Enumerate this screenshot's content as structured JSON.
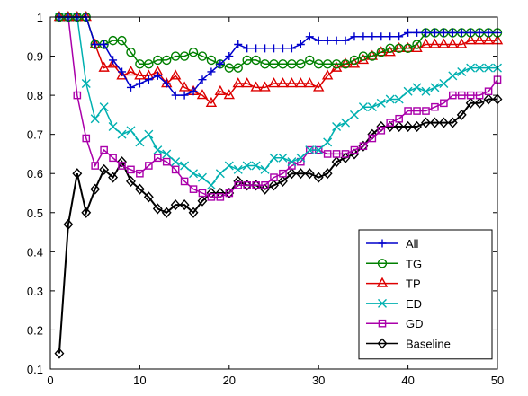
{
  "chart_data": {
    "type": "line",
    "title": "",
    "xlabel": "",
    "ylabel": "",
    "xlim": [
      0,
      50
    ],
    "ylim": [
      0.1,
      1
    ],
    "xticks": [
      0,
      10,
      20,
      30,
      40,
      50
    ],
    "yticks": [
      0.1,
      0.2,
      0.3,
      0.4,
      0.5,
      0.6,
      0.7,
      0.8,
      0.9,
      1
    ],
    "ytick_labels": [
      "0.1",
      "0.2",
      "0.3",
      "0.4",
      "0.5",
      "0.6",
      "0.7",
      "0.8",
      "0.9",
      "1"
    ],
    "grid": false,
    "legend_position": "bottom-right",
    "x": [
      1,
      2,
      3,
      4,
      5,
      6,
      7,
      8,
      9,
      10,
      11,
      12,
      13,
      14,
      15,
      16,
      17,
      18,
      19,
      20,
      21,
      22,
      23,
      24,
      25,
      26,
      27,
      28,
      29,
      30,
      31,
      32,
      33,
      34,
      35,
      36,
      37,
      38,
      39,
      40,
      41,
      42,
      43,
      44,
      45,
      46,
      47,
      48,
      49,
      50
    ],
    "series": [
      {
        "name": "All",
        "color": "#0000cc",
        "marker": "plus",
        "values": [
          1,
          1,
          1,
          1,
          0.93,
          0.93,
          0.89,
          0.86,
          0.82,
          0.83,
          0.84,
          0.85,
          0.83,
          0.8,
          0.8,
          0.81,
          0.84,
          0.86,
          0.88,
          0.9,
          0.93,
          0.92,
          0.92,
          0.92,
          0.92,
          0.92,
          0.92,
          0.93,
          0.95,
          0.94,
          0.94,
          0.94,
          0.94,
          0.95,
          0.95,
          0.95,
          0.95,
          0.95,
          0.95,
          0.96,
          0.96,
          0.96,
          0.96,
          0.96,
          0.96,
          0.96,
          0.96,
          0.96,
          0.96,
          0.96
        ]
      },
      {
        "name": "TG",
        "color": "#008000",
        "marker": "circle",
        "values": [
          1,
          1,
          1,
          1,
          0.93,
          0.93,
          0.94,
          0.94,
          0.91,
          0.88,
          0.88,
          0.89,
          0.89,
          0.9,
          0.9,
          0.91,
          0.9,
          0.89,
          0.88,
          0.87,
          0.87,
          0.89,
          0.89,
          0.88,
          0.88,
          0.88,
          0.88,
          0.88,
          0.89,
          0.88,
          0.88,
          0.88,
          0.88,
          0.89,
          0.9,
          0.9,
          0.91,
          0.92,
          0.92,
          0.92,
          0.93,
          0.96,
          0.96,
          0.96,
          0.96,
          0.96,
          0.96,
          0.96,
          0.96,
          0.96
        ]
      },
      {
        "name": "TP",
        "color": "#dd0000",
        "marker": "triangle",
        "values": [
          1,
          1,
          1,
          1,
          0.93,
          0.87,
          0.88,
          0.85,
          0.86,
          0.85,
          0.85,
          0.86,
          0.83,
          0.85,
          0.82,
          0.81,
          0.8,
          0.78,
          0.81,
          0.8,
          0.83,
          0.83,
          0.82,
          0.82,
          0.83,
          0.83,
          0.83,
          0.83,
          0.83,
          0.82,
          0.85,
          0.87,
          0.88,
          0.88,
          0.89,
          0.9,
          0.91,
          0.91,
          0.92,
          0.92,
          0.92,
          0.93,
          0.93,
          0.93,
          0.93,
          0.93,
          0.94,
          0.94,
          0.94,
          0.94
        ]
      },
      {
        "name": "ED",
        "color": "#00b0b0",
        "marker": "cross",
        "values": [
          1,
          1,
          1,
          0.83,
          0.74,
          0.77,
          0.72,
          0.7,
          0.71,
          0.68,
          0.7,
          0.66,
          0.65,
          0.63,
          0.62,
          0.6,
          0.59,
          0.57,
          0.6,
          0.62,
          0.61,
          0.62,
          0.62,
          0.61,
          0.64,
          0.64,
          0.63,
          0.64,
          0.66,
          0.66,
          0.68,
          0.72,
          0.73,
          0.75,
          0.77,
          0.77,
          0.78,
          0.79,
          0.79,
          0.81,
          0.82,
          0.81,
          0.82,
          0.83,
          0.85,
          0.86,
          0.87,
          0.87,
          0.87,
          0.87
        ]
      },
      {
        "name": "GD",
        "color": "#aa00aa",
        "marker": "square",
        "values": [
          1,
          1,
          0.8,
          0.69,
          0.62,
          0.66,
          0.64,
          0.62,
          0.61,
          0.6,
          0.62,
          0.64,
          0.63,
          0.61,
          0.58,
          0.56,
          0.55,
          0.54,
          0.54,
          0.55,
          0.57,
          0.57,
          0.57,
          0.57,
          0.59,
          0.6,
          0.62,
          0.63,
          0.66,
          0.66,
          0.65,
          0.65,
          0.65,
          0.66,
          0.67,
          0.69,
          0.71,
          0.73,
          0.74,
          0.76,
          0.76,
          0.76,
          0.77,
          0.78,
          0.8,
          0.8,
          0.8,
          0.8,
          0.81,
          0.84
        ]
      },
      {
        "name": "Baseline",
        "color": "#000000",
        "marker": "diamond",
        "values": [
          0.14,
          0.47,
          0.6,
          0.5,
          0.56,
          0.61,
          0.59,
          0.63,
          0.58,
          0.56,
          0.54,
          0.51,
          0.5,
          0.52,
          0.52,
          0.5,
          0.53,
          0.55,
          0.55,
          0.55,
          0.58,
          0.57,
          0.57,
          0.56,
          0.57,
          0.58,
          0.6,
          0.6,
          0.6,
          0.59,
          0.6,
          0.63,
          0.64,
          0.65,
          0.67,
          0.7,
          0.72,
          0.72,
          0.72,
          0.72,
          0.72,
          0.73,
          0.73,
          0.73,
          0.73,
          0.75,
          0.78,
          0.78,
          0.79,
          0.79
        ]
      }
    ]
  }
}
